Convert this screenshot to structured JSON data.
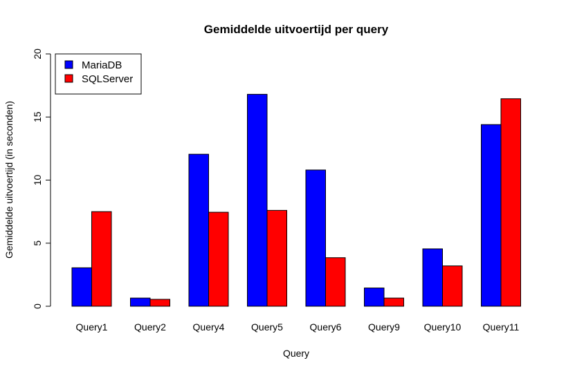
{
  "chart_data": {
    "type": "bar",
    "title": "Gemiddelde uitvoertijd per query",
    "xlabel": "Query",
    "ylabel": "Gemiddelde uitvoertijd (in seconden)",
    "ylim": [
      0,
      20
    ],
    "yticks": [
      0,
      5,
      10,
      15,
      20
    ],
    "grid": false,
    "legend_position": "top-left",
    "categories": [
      "Query1",
      "Query2",
      "Query4",
      "Query5",
      "Query6",
      "Query9",
      "Query10",
      "Query11"
    ],
    "series": [
      {
        "name": "MariaDB",
        "color": "#0000ff",
        "values": [
          3.05,
          0.65,
          12.05,
          16.8,
          10.8,
          1.45,
          4.55,
          14.4
        ]
      },
      {
        "name": "SQLServer",
        "color": "#ff0000",
        "values": [
          7.5,
          0.55,
          7.45,
          7.6,
          3.85,
          0.65,
          3.2,
          16.45
        ]
      }
    ]
  }
}
